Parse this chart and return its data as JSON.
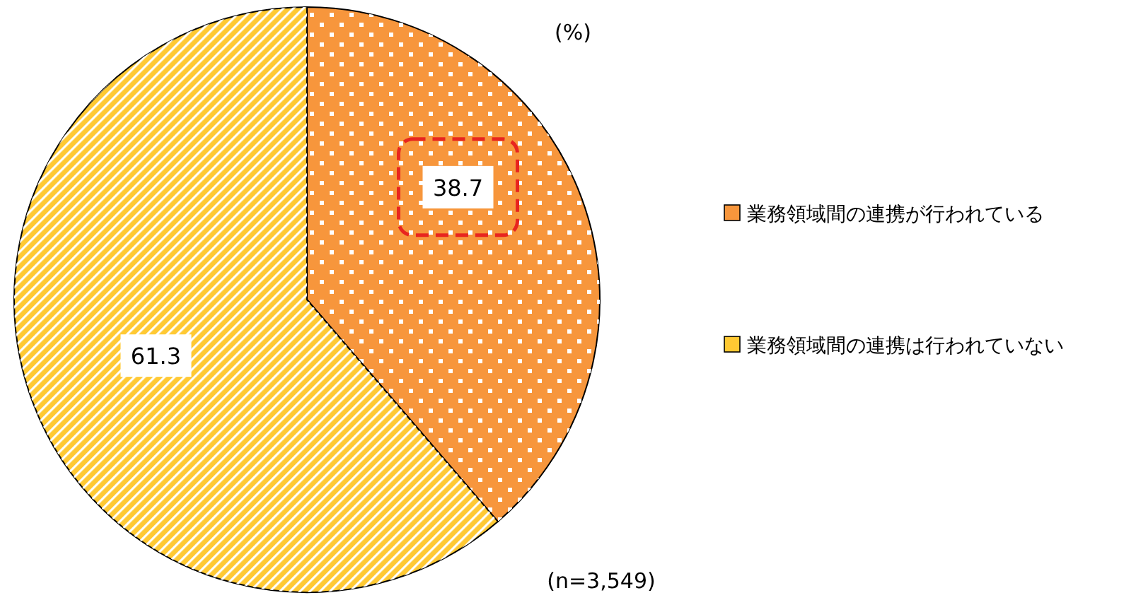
{
  "chart_data": {
    "type": "pie",
    "categories": [
      "業務領域間の連携が行われている",
      "業務領域間の連携は行われていない"
    ],
    "values": [
      38.7,
      61.3
    ],
    "colors": [
      "#f7963c",
      "#ffc933"
    ],
    "data_labels": true,
    "legend": "right",
    "annotations": [
      "(%)",
      "(n=3,549)"
    ]
  }
}
